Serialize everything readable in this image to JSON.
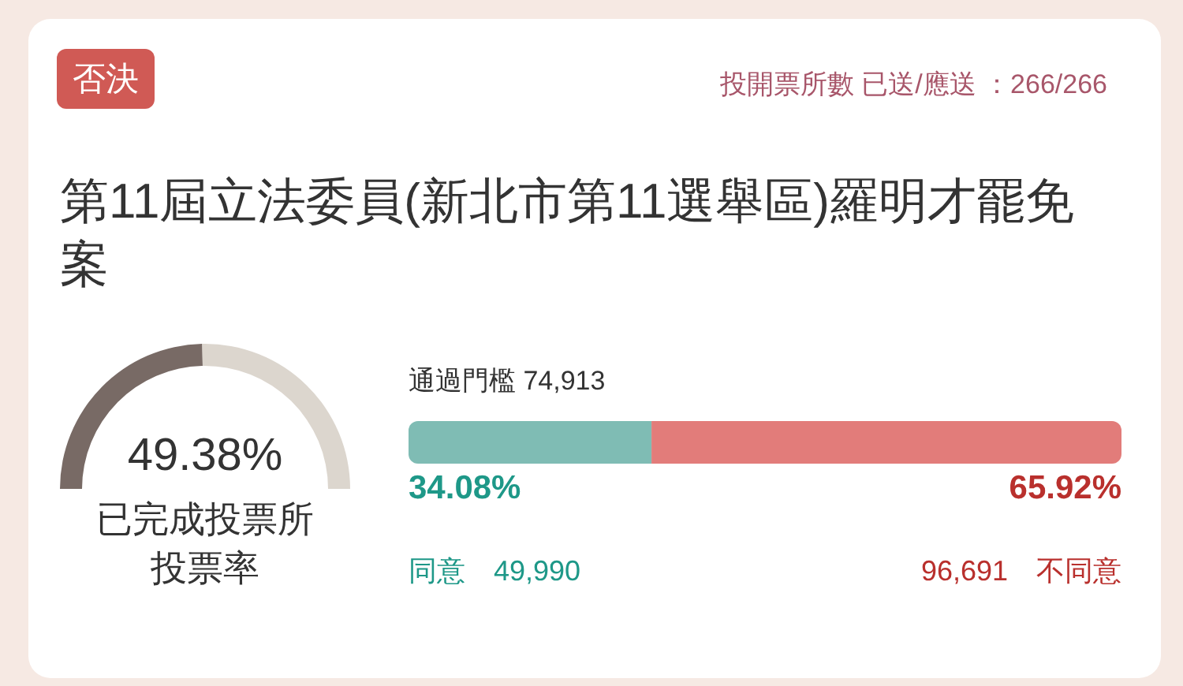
{
  "chart_data": [
    {
      "type": "other",
      "title": "第11屆立法委員(新北市第11選舉區)羅明才罷免案",
      "annotations": [
        "否決",
        "投開票所數 已送/應送 ：266/266"
      ]
    },
    {
      "type": "donut",
      "title": "已完成投票所",
      "subtitle": "投票率",
      "categories": [
        null,
        null
      ],
      "values": [
        49.38,
        50.62
      ],
      "colors": [
        "#786a65",
        "#dcd6ce"
      ],
      "value_labels": [
        "49.38%",
        null
      ]
    },
    {
      "type": "bar",
      "orientation": "horizontal",
      "stacked": true,
      "categories": [
        null
      ],
      "annotations": [
        "通過門檻 74,913",
        "49,990",
        "96,691"
      ],
      "series": [
        {
          "name": "同意",
          "color": "#7fbcb4",
          "values": [
            34.08
          ],
          "value_labels": [
            "34.08%"
          ]
        },
        {
          "name": "不同意",
          "color": "#e27c7a",
          "values": [
            65.92
          ],
          "value_labels": [
            "65.92%"
          ]
        }
      ]
    }
  ]
}
